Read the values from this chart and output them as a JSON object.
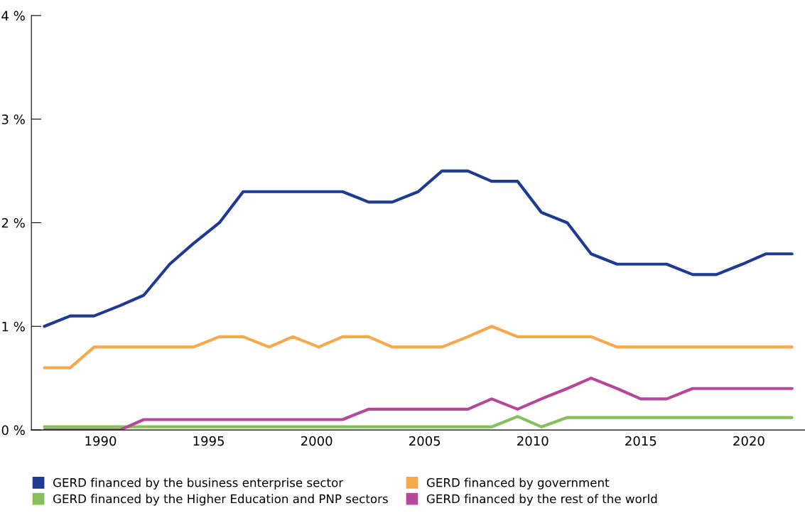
{
  "chart_data": {
    "type": "line",
    "x": [
      1987.4,
      1988.6,
      1989.7,
      1990.9,
      1992.0,
      1993.2,
      1994.3,
      1995.5,
      1996.6,
      1997.8,
      1998.9,
      2000.1,
      2001.2,
      2002.4,
      2003.5,
      2004.7,
      2005.8,
      2007.0,
      2008.1,
      2009.3,
      2010.4,
      2011.6,
      2012.7,
      2013.9,
      2015.0,
      2016.2,
      2017.4,
      2018.5,
      2019.7,
      2020.8,
      2022.0
    ],
    "series": [
      {
        "name": "GERD financed by the business enterprise sector",
        "color": "#1f3a93",
        "values": [
          1.0,
          1.1,
          1.1,
          1.2,
          1.3,
          1.6,
          1.8,
          2.0,
          2.3,
          2.3,
          2.3,
          2.3,
          2.3,
          2.2,
          2.2,
          2.3,
          2.5,
          2.5,
          2.4,
          2.4,
          2.1,
          2.0,
          1.7,
          1.6,
          1.6,
          1.6,
          1.5,
          1.5,
          1.6,
          1.7,
          1.7
        ]
      },
      {
        "name": "GERD financed by government",
        "color": "#f7a84a",
        "values": [
          0.6,
          0.6,
          0.8,
          0.8,
          0.8,
          0.8,
          0.8,
          0.9,
          0.9,
          0.8,
          0.9,
          0.8,
          0.9,
          0.9,
          0.8,
          0.8,
          0.8,
          0.9,
          1.0,
          0.9,
          0.9,
          0.9,
          0.9,
          0.8,
          0.8,
          0.8,
          0.8,
          0.8,
          0.8,
          0.8,
          0.8
        ]
      },
      {
        "name": "GERD financed by the Higher Education and PNP sectors",
        "color": "#86c05a",
        "values": [
          0.03,
          0.03,
          0.03,
          0.03,
          0.03,
          0.03,
          0.03,
          0.03,
          0.03,
          0.03,
          0.03,
          0.03,
          0.03,
          0.03,
          0.03,
          0.03,
          0.03,
          0.03,
          0.03,
          0.13,
          0.03,
          0.12,
          0.12,
          0.12,
          0.12,
          0.12,
          0.12,
          0.12,
          0.12,
          0.12,
          0.12
        ]
      },
      {
        "name": "GERD financed by the rest of the world",
        "color": "#b5489a",
        "values": [
          0,
          0,
          0,
          0,
          0.1,
          0.1,
          0.1,
          0.1,
          0.1,
          0.1,
          0.1,
          0.1,
          0.1,
          0.2,
          0.2,
          0.2,
          0.2,
          0.2,
          0.3,
          0.2,
          0.3,
          0.4,
          0.5,
          0.4,
          0.3,
          0.3,
          0.4,
          0.4,
          0.4,
          0.4,
          0.4
        ]
      }
    ],
    "xlim": [
      1986.8,
      2022.6
    ],
    "xticks": [
      1990,
      1995,
      2000,
      2005,
      2010,
      2015,
      2020
    ],
    "ylim": [
      0,
      4
    ],
    "yticks": [
      {
        "value": 0,
        "label": "0 %"
      },
      {
        "value": 1,
        "label": "1 %"
      },
      {
        "value": 2,
        "label": "2 %"
      },
      {
        "value": 3,
        "label": "3 %"
      },
      {
        "value": 4,
        "label": "4 %"
      }
    ],
    "grid": false,
    "legend": "bottom",
    "marker": "none",
    "line_style": "solid"
  }
}
